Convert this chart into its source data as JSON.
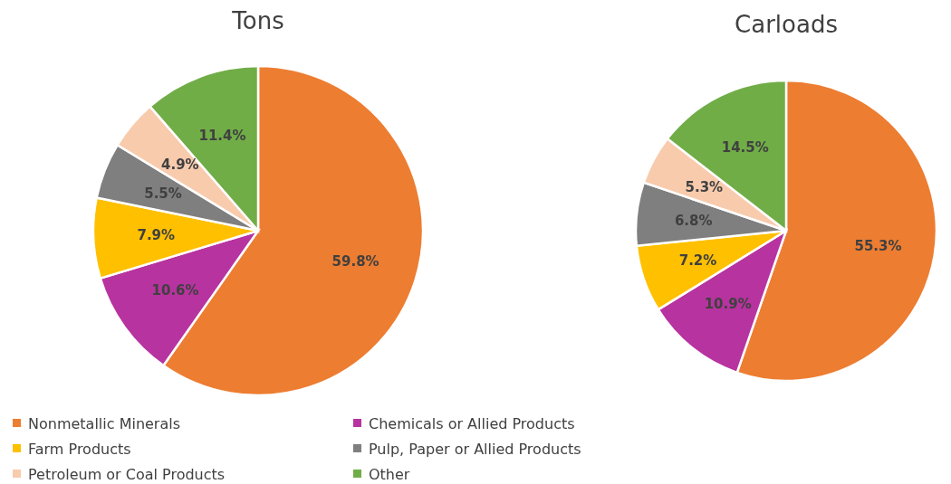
{
  "chart_data": [
    {
      "type": "pie",
      "title": "Tons",
      "categories": [
        "Nonmetallic Minerals",
        "Chemicals or Allied Products",
        "Farm Products",
        "Pulp, Paper or Allied Products",
        "Petroleum or Coal Products",
        "Other"
      ],
      "values": [
        59.8,
        10.6,
        7.9,
        5.5,
        4.9,
        11.4
      ],
      "value_labels": [
        "59.8%",
        "10.6%",
        "7.9%",
        "5.5%",
        "4.9%",
        "11.4%"
      ],
      "colors": [
        "#ed7d31",
        "#b7339f",
        "#ffc000",
        "#7f7f7f",
        "#f8cbad",
        "#70ad47"
      ],
      "legend": "bottom"
    },
    {
      "type": "pie",
      "title": "Carloads",
      "categories": [
        null,
        null,
        null,
        null,
        null,
        null
      ],
      "values": [
        55.3,
        10.9,
        7.2,
        6.8,
        5.3,
        14.5
      ],
      "value_labels": [
        "55.3%",
        "10.9%",
        "7.2%",
        "6.8%",
        "5.3%",
        "14.5%"
      ],
      "colors": [
        "#ed7d31",
        "#b7339f",
        "#ffc000",
        "#7f7f7f",
        "#f8cbad",
        "#70ad47"
      ]
    }
  ]
}
